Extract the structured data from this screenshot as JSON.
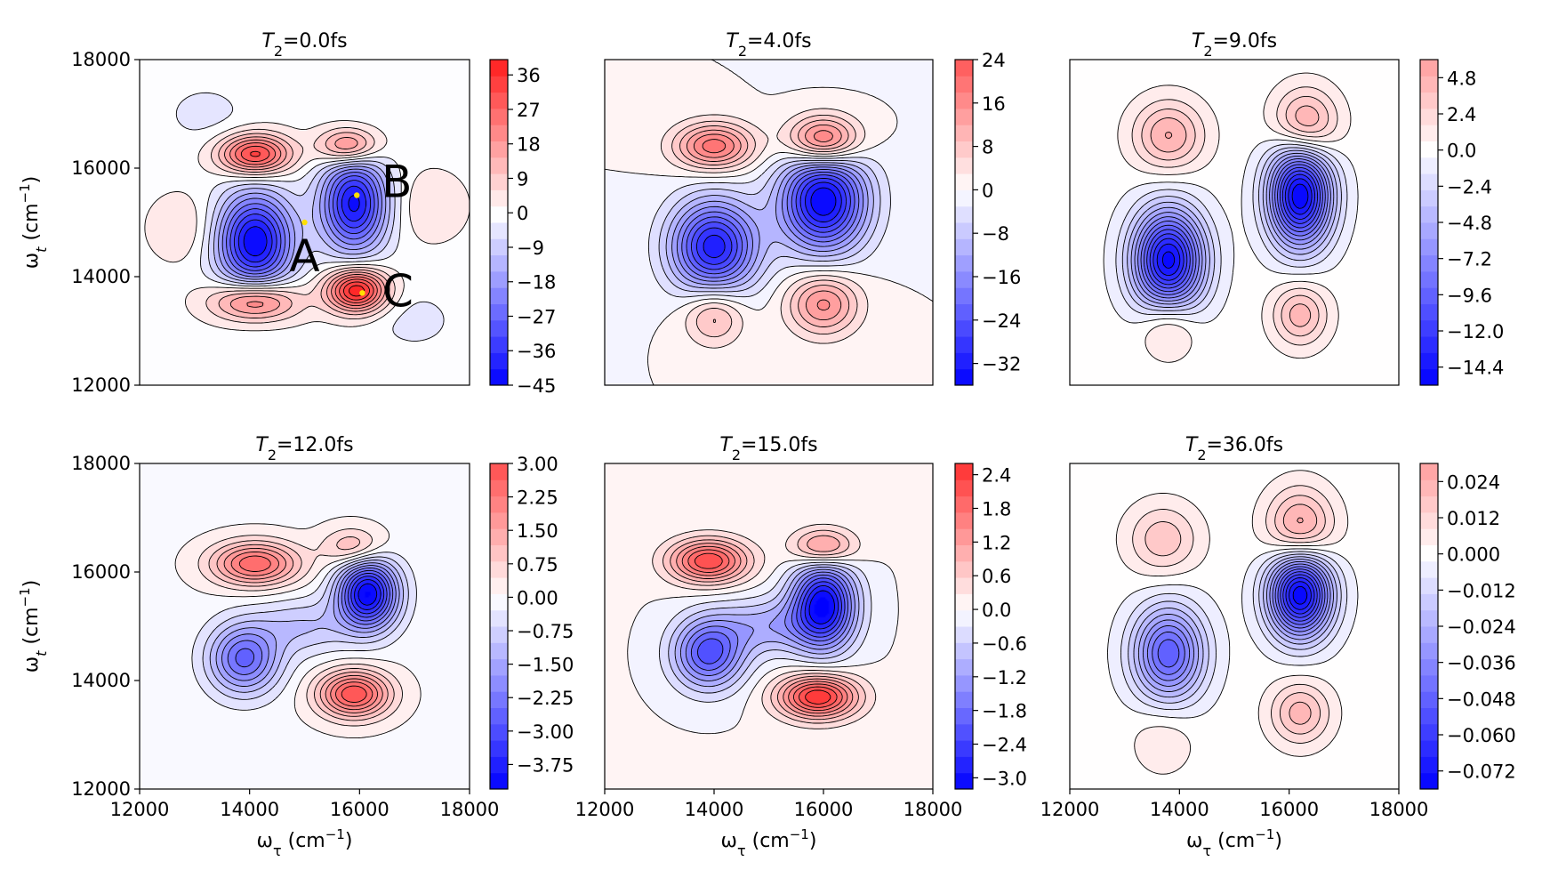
{
  "chart_data": [
    {
      "type": "heatmap",
      "title_prefix": "T",
      "title_sub": "2",
      "title_suffix": "=0.0fs",
      "xlabel": "",
      "ylabel_main": "ω",
      "ylabel_sub": "t",
      "ylabel_unit": " (cm",
      "ylabel_exp": "−1",
      "ylabel_close": ")",
      "xlim": [
        12000,
        18000
      ],
      "ylim": [
        12000,
        18000
      ],
      "xticks": [],
      "yticks": [
        "12000",
        "14000",
        "16000",
        "18000"
      ],
      "colorbar_range": [
        -45,
        40
      ],
      "colorbar_ticks": [
        "36",
        "27",
        "18",
        "9",
        "0",
        "−9",
        "−18",
        "−27",
        "−36",
        "−45"
      ],
      "colorbar_values": [
        36,
        27,
        18,
        9,
        0,
        -9,
        -18,
        -27,
        -36,
        -45
      ],
      "peaks": [
        {
          "x": 14100,
          "y": 16250,
          "amp": 34,
          "sx": 450,
          "sy": 260
        },
        {
          "x": 15800,
          "y": 16400,
          "amp": 26,
          "sx": 380,
          "sy": 240
        },
        {
          "x": 14100,
          "y": 13550,
          "amp": 28,
          "sx": 550,
          "sy": 260
        },
        {
          "x": 15950,
          "y": 13750,
          "amp": 40,
          "sx": 380,
          "sy": 280
        },
        {
          "x": 14100,
          "y": 14650,
          "amp": -45,
          "sx": 480,
          "sy": 620
        },
        {
          "x": 15900,
          "y": 15350,
          "amp": -42,
          "sx": 420,
          "sy": 620
        },
        {
          "x": 17300,
          "y": 15300,
          "amp": 6,
          "sx": 450,
          "sy": 450
        },
        {
          "x": 12800,
          "y": 14900,
          "amp": 6,
          "sx": 450,
          "sy": 450
        },
        {
          "x": 13200,
          "y": 17000,
          "amp": -4,
          "sx": 550,
          "sy": 400
        },
        {
          "x": 17000,
          "y": 13200,
          "amp": -4,
          "sx": 550,
          "sy": 400
        }
      ],
      "annotations": [
        {
          "label": "A",
          "x": 15000,
          "y": 15000
        },
        {
          "label": "B",
          "x": 15950,
          "y": 15500
        },
        {
          "label": "C",
          "x": 16050,
          "y": 13700
        }
      ]
    },
    {
      "type": "heatmap",
      "title_prefix": "T",
      "title_sub": "2",
      "title_suffix": "=4.0fs",
      "xlim": [
        12000,
        18000
      ],
      "ylim": [
        12000,
        18000
      ],
      "xticks": [],
      "yticks": [],
      "colorbar_range": [
        -36,
        24
      ],
      "colorbar_ticks": [
        "24",
        "16",
        "8",
        "0",
        "−8",
        "−16",
        "−24",
        "−32"
      ],
      "colorbar_values": [
        24,
        16,
        8,
        0,
        -8,
        -16,
        -24,
        -32
      ],
      "peaks": [
        {
          "x": 14000,
          "y": 16400,
          "amp": 20,
          "sx": 500,
          "sy": 300
        },
        {
          "x": 16000,
          "y": 16500,
          "amp": 24,
          "sx": 450,
          "sy": 320
        },
        {
          "x": 14000,
          "y": 13300,
          "amp": 12,
          "sx": 380,
          "sy": 380
        },
        {
          "x": 16000,
          "y": 13500,
          "amp": 16,
          "sx": 450,
          "sy": 400
        },
        {
          "x": 14000,
          "y": 14550,
          "amp": -32,
          "sx": 550,
          "sy": 600
        },
        {
          "x": 16000,
          "y": 15400,
          "amp": -36,
          "sx": 550,
          "sy": 650
        }
      ]
    },
    {
      "type": "heatmap",
      "title_prefix": "T",
      "title_sub": "2",
      "title_suffix": "=9.0fs",
      "xlim": [
        12000,
        18000
      ],
      "ylim": [
        12000,
        18000
      ],
      "xticks": [],
      "yticks": [],
      "colorbar_range": [
        -15.6,
        6
      ],
      "colorbar_ticks": [
        "4.8",
        "2.4",
        "0.0",
        "−2.4",
        "−4.8",
        "−7.2",
        "−9.6",
        "−12.0",
        "−14.4"
      ],
      "colorbar_values": [
        4.8,
        2.4,
        0,
        -2.4,
        -4.8,
        -7.2,
        -9.6,
        -12,
        -14.4
      ],
      "peaks": [
        {
          "x": 13800,
          "y": 16600,
          "amp": 5,
          "sx": 450,
          "sy": 450
        },
        {
          "x": 16300,
          "y": 16800,
          "amp": 6,
          "sx": 400,
          "sy": 450
        },
        {
          "x": 13800,
          "y": 13100,
          "amp": 3.5,
          "sx": 350,
          "sy": 400
        },
        {
          "x": 16200,
          "y": 13300,
          "amp": 4.5,
          "sx": 350,
          "sy": 400
        },
        {
          "x": 13800,
          "y": 14300,
          "amp": -15,
          "sx": 450,
          "sy": 650
        },
        {
          "x": 16200,
          "y": 15500,
          "amp": -15.6,
          "sx": 400,
          "sy": 650
        }
      ]
    },
    {
      "type": "heatmap",
      "title_prefix": "T",
      "title_sub": "2",
      "title_suffix": "=12.0fs",
      "xlim": [
        12000,
        18000
      ],
      "ylim": [
        12000,
        18000
      ],
      "xticks": [],
      "yticks": [
        "12000",
        "14000",
        "16000",
        "18000"
      ],
      "colorbar_range": [
        -4.3,
        3
      ],
      "colorbar_ticks": [
        "3.00",
        "2.25",
        "1.50",
        "0.75",
        "0.00",
        "−0.75",
        "−1.50",
        "−2.25",
        "−3.00",
        "−3.75"
      ],
      "colorbar_values": [
        3,
        2.25,
        1.5,
        0.75,
        0,
        -0.75,
        -1.5,
        -2.25,
        -3,
        -3.75
      ],
      "peaks": [
        {
          "x": 14100,
          "y": 16150,
          "amp": 2.6,
          "sx": 550,
          "sy": 280
        },
        {
          "x": 15900,
          "y": 16450,
          "amp": 1.4,
          "sx": 380,
          "sy": 250
        },
        {
          "x": 15900,
          "y": 13750,
          "amp": 3.0,
          "sx": 450,
          "sy": 300
        },
        {
          "x": 13900,
          "y": 14400,
          "amp": -2.6,
          "sx": 450,
          "sy": 450
        },
        {
          "x": 16150,
          "y": 15600,
          "amp": -4.3,
          "sx": 380,
          "sy": 450
        },
        {
          "x": 15000,
          "y": 15000,
          "amp": -1.0,
          "sx": 600,
          "sy": 350
        }
      ]
    },
    {
      "type": "heatmap",
      "title_prefix": "T",
      "title_sub": "2",
      "title_suffix": "=15.0fs",
      "xlim": [
        12000,
        18000
      ],
      "ylim": [
        12000,
        18000
      ],
      "xticks": [],
      "yticks": [],
      "colorbar_range": [
        -3.2,
        2.6
      ],
      "colorbar_ticks": [
        "2.4",
        "1.8",
        "1.2",
        "0.6",
        "0.0",
        "−0.6",
        "−1.2",
        "−1.8",
        "−2.4",
        "−3.0"
      ],
      "colorbar_values": [
        2.4,
        1.8,
        1.2,
        0.6,
        0,
        -0.6,
        -1.2,
        -1.8,
        -2.4,
        -3.0
      ],
      "peaks": [
        {
          "x": 13900,
          "y": 16200,
          "amp": 2.3,
          "sx": 500,
          "sy": 280
        },
        {
          "x": 16000,
          "y": 16450,
          "amp": 1.6,
          "sx": 400,
          "sy": 250
        },
        {
          "x": 15900,
          "y": 13700,
          "amp": 2.6,
          "sx": 500,
          "sy": 280
        },
        {
          "x": 13900,
          "y": 14500,
          "amp": -2.2,
          "sx": 450,
          "sy": 450
        },
        {
          "x": 16000,
          "y": 15400,
          "amp": -3.2,
          "sx": 400,
          "sy": 550
        },
        {
          "x": 15000,
          "y": 15000,
          "amp": -1.0,
          "sx": 650,
          "sy": 350
        }
      ]
    },
    {
      "type": "heatmap",
      "title_prefix": "T",
      "title_sub": "2",
      "title_suffix": "=36.0fs",
      "xlim": [
        12000,
        18000
      ],
      "ylim": [
        12000,
        18000
      ],
      "xticks": [],
      "yticks": [],
      "colorbar_range": [
        -0.078,
        0.03
      ],
      "colorbar_ticks": [
        "0.024",
        "0.012",
        "0.000",
        "−0.012",
        "−0.024",
        "−0.036",
        "−0.048",
        "−0.060",
        "−0.072"
      ],
      "colorbar_values": [
        0.024,
        0.012,
        0,
        -0.012,
        -0.024,
        -0.036,
        -0.048,
        -0.06,
        -0.072
      ],
      "peaks": [
        {
          "x": 13700,
          "y": 16600,
          "amp": 0.018,
          "sx": 450,
          "sy": 450
        },
        {
          "x": 16200,
          "y": 16800,
          "amp": 0.03,
          "sx": 420,
          "sy": 500
        },
        {
          "x": 16200,
          "y": 13400,
          "amp": 0.022,
          "sx": 380,
          "sy": 400
        },
        {
          "x": 13700,
          "y": 12900,
          "amp": 0.008,
          "sx": 400,
          "sy": 450
        },
        {
          "x": 13800,
          "y": 14500,
          "amp": -0.05,
          "sx": 450,
          "sy": 600
        },
        {
          "x": 16200,
          "y": 15600,
          "amp": -0.078,
          "sx": 400,
          "sy": 550
        }
      ]
    }
  ],
  "shared_axes": {
    "xlabel_main": "ω",
    "xlabel_sub": "τ",
    "xlabel_unit": " (cm",
    "xlabel_exp": "−1",
    "xlabel_close": ")",
    "xticks": [
      "12000",
      "14000",
      "16000",
      "18000"
    ],
    "ylabel_main": "ω",
    "ylabel_sub": "t",
    "ylabel_unit": " (cm",
    "ylabel_exp": "−1",
    "ylabel_close": ")",
    "yticks": [
      "12000",
      "14000",
      "16000",
      "18000"
    ]
  },
  "colors": {
    "positive": "#ff0000",
    "negative": "#0000ff",
    "zero": "#ffffff",
    "contour": "#000000",
    "marker": "#ffe000"
  }
}
